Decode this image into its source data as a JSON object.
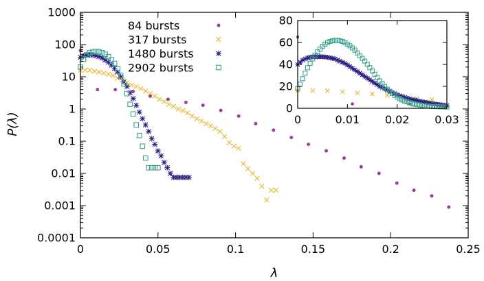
{
  "chart_data": [
    {
      "type": "scatter",
      "xlabel": "λ",
      "ylabel": "P(λ)",
      "xlim": [
        0,
        0.25
      ],
      "ylim": [
        0.0001,
        1000
      ],
      "yscale": "log",
      "grid": false,
      "legend_position": "top-center",
      "x_ticks": [
        "0",
        "0.05",
        "0.1",
        "0.15",
        "0.2",
        "0.25"
      ],
      "y_ticks": [
        "0.0001",
        "0.001",
        "0.01",
        "0.1",
        "1",
        "10",
        "100",
        "1000"
      ],
      "series": [
        {
          "name": "84  bursts",
          "color": "#9b3d96",
          "marker": "circle",
          "x": [
            0.0,
            0.011,
            0.0225,
            0.034,
            0.045,
            0.0565,
            0.068,
            0.079,
            0.0905,
            0.102,
            0.113,
            0.1245,
            0.136,
            0.147,
            0.1585,
            0.17,
            0.181,
            0.1925,
            0.204,
            0.215,
            0.2265,
            0.2375
          ],
          "y": [
            65,
            4,
            4,
            3.5,
            2.5,
            2,
            1.6,
            1.3,
            0.9,
            0.6,
            0.35,
            0.22,
            0.13,
            0.08,
            0.05,
            0.03,
            0.016,
            0.01,
            0.005,
            0.003,
            0.002,
            0.0009
          ]
        },
        {
          "name": "317  bursts",
          "color": "#e8b52b",
          "marker": "cross",
          "x": [
            0.0,
            0.003,
            0.006,
            0.009,
            0.012,
            0.015,
            0.018,
            0.021,
            0.024,
            0.027,
            0.03,
            0.033,
            0.036,
            0.039,
            0.042,
            0.045,
            0.048,
            0.051,
            0.054,
            0.057,
            0.06,
            0.063,
            0.066,
            0.069,
            0.072,
            0.075,
            0.078,
            0.081,
            0.084,
            0.087,
            0.09,
            0.093,
            0.096,
            0.099,
            0.102,
            0.105,
            0.108,
            0.111,
            0.114,
            0.117,
            0.12,
            0.123,
            0.126
          ],
          "y": [
            16,
            16,
            16,
            15,
            14,
            13,
            12,
            11,
            9,
            8,
            6.5,
            5.5,
            5,
            4.3,
            3.6,
            3,
            2.5,
            2,
            1.7,
            1.4,
            1.2,
            1,
            0.9,
            0.75,
            0.6,
            0.5,
            0.42,
            0.35,
            0.3,
            0.25,
            0.2,
            0.14,
            0.09,
            0.07,
            0.06,
            0.02,
            0.014,
            0.01,
            0.007,
            0.004,
            0.0015,
            0.003,
            0.003
          ]
        },
        {
          "name": "1480 bursts",
          "color": "#2a1e82",
          "marker": "asterisk",
          "x": [
            0.0,
            0.002,
            0.004,
            0.006,
            0.008,
            0.01,
            0.012,
            0.014,
            0.016,
            0.018,
            0.02,
            0.022,
            0.024,
            0.026,
            0.028,
            0.03,
            0.032,
            0.034,
            0.036,
            0.038,
            0.04,
            0.042,
            0.044,
            0.046,
            0.048,
            0.05,
            0.052,
            0.054,
            0.056,
            0.058,
            0.06,
            0.062,
            0.064,
            0.066,
            0.068,
            0.07
          ],
          "y": [
            40,
            44,
            47,
            48,
            47,
            45,
            42,
            38,
            33,
            28,
            23,
            18,
            14,
            10,
            7,
            5,
            3.2,
            2.1,
            1.3,
            0.8,
            0.5,
            0.32,
            0.2,
            0.12,
            0.08,
            0.05,
            0.035,
            0.022,
            0.015,
            0.01,
            0.0075,
            0.0075,
            0.0075,
            0.0075,
            0.0075,
            0.0075
          ]
        },
        {
          "name": "2902 bursts",
          "color": "#3aa38f",
          "marker": "square",
          "x": [
            0.0,
            0.002,
            0.004,
            0.006,
            0.008,
            0.01,
            0.012,
            0.014,
            0.016,
            0.018,
            0.02,
            0.022,
            0.024,
            0.026,
            0.028,
            0.03,
            0.032,
            0.034,
            0.036,
            0.038,
            0.04,
            0.042,
            0.044,
            0.046,
            0.048,
            0.05
          ],
          "y": [
            20,
            35,
            48,
            56,
            60,
            61,
            60,
            56,
            50,
            42,
            34,
            26,
            18,
            11,
            6,
            3,
            1.4,
            0.7,
            0.32,
            0.15,
            0.07,
            0.03,
            0.015,
            0.015,
            0.015,
            0.015
          ]
        }
      ]
    },
    {
      "type": "scatter",
      "xlim": [
        0,
        0.03
      ],
      "ylim": [
        0,
        80
      ],
      "yscale": "linear",
      "grid": false,
      "x_ticks": [
        "0",
        "0.01",
        "0.02",
        "0.03"
      ],
      "y_ticks": [
        "0",
        "20",
        "40",
        "60",
        "80"
      ],
      "series": [
        {
          "color": "#9b3d96",
          "marker": "circle",
          "x": [
            0.0,
            0.011,
            0.0225
          ],
          "y": [
            65,
            4,
            4
          ]
        },
        {
          "color": "#e8b52b",
          "marker": "cross",
          "x": [
            0.0,
            0.003,
            0.006,
            0.009,
            0.012,
            0.015,
            0.018,
            0.021,
            0.024,
            0.027
          ],
          "y": [
            16,
            16,
            16,
            15,
            14,
            13,
            12,
            11,
            9,
            8
          ]
        },
        {
          "color": "#2a1e82",
          "marker": "asterisk",
          "x": [
            0.0,
            0.0005,
            0.001,
            0.0015,
            0.002,
            0.0025,
            0.003,
            0.0035,
            0.004,
            0.0045,
            0.005,
            0.0055,
            0.006,
            0.0065,
            0.007,
            0.0075,
            0.008,
            0.0085,
            0.009,
            0.0095,
            0.01,
            0.0105,
            0.011,
            0.0115,
            0.012,
            0.0125,
            0.013,
            0.0135,
            0.014,
            0.0145,
            0.015,
            0.0155,
            0.016,
            0.0165,
            0.017,
            0.0175,
            0.018,
            0.0185,
            0.019,
            0.0195,
            0.02,
            0.0205,
            0.021,
            0.0215,
            0.022,
            0.0225,
            0.023,
            0.0235,
            0.024,
            0.0245,
            0.025,
            0.0255,
            0.026,
            0.0265,
            0.027,
            0.0275,
            0.028,
            0.0285,
            0.029,
            0.0295,
            0.03
          ],
          "y": [
            40,
            42,
            44,
            45,
            46,
            46.5,
            47,
            47,
            47,
            47,
            47,
            46.8,
            46.5,
            46,
            45.5,
            45,
            44,
            43,
            42,
            41,
            39.5,
            38,
            36.5,
            35,
            33.5,
            32,
            30.5,
            29,
            27.5,
            26,
            24.5,
            23,
            21.5,
            20,
            19,
            17.8,
            16.6,
            15.4,
            14.4,
            13.4,
            12.4,
            11.5,
            10.7,
            10,
            9.3,
            8.6,
            8,
            7.5,
            7,
            6.5,
            6,
            5.6,
            5.2,
            4.8,
            4.4,
            4,
            3.7,
            3.4,
            3.1,
            2.8,
            2.5
          ]
        },
        {
          "color": "#3aa38f",
          "marker": "square",
          "x": [
            0.0,
            0.0005,
            0.001,
            0.0015,
            0.002,
            0.0025,
            0.003,
            0.0035,
            0.004,
            0.0045,
            0.005,
            0.0055,
            0.006,
            0.0065,
            0.007,
            0.0075,
            0.008,
            0.0085,
            0.009,
            0.0095,
            0.01,
            0.0105,
            0.011,
            0.0115,
            0.012,
            0.0125,
            0.013,
            0.0135,
            0.014,
            0.0145,
            0.015,
            0.0155,
            0.016,
            0.0165,
            0.017,
            0.0175,
            0.018,
            0.0185,
            0.019,
            0.0195,
            0.02,
            0.0205,
            0.021,
            0.0215,
            0.022,
            0.0225,
            0.023,
            0.0235,
            0.024,
            0.0245,
            0.025,
            0.0255,
            0.026,
            0.0265,
            0.027,
            0.0275,
            0.028,
            0.0285,
            0.029,
            0.0295,
            0.03
          ],
          "y": [
            18,
            22,
            27,
            32,
            37,
            41,
            45,
            48.5,
            51.5,
            54,
            56.5,
            58.5,
            60,
            61,
            61.5,
            62,
            62,
            61.5,
            61,
            60,
            58.5,
            57,
            55,
            53,
            50.5,
            48,
            45.5,
            43,
            40,
            37,
            34,
            31,
            28,
            25,
            22.5,
            20,
            17.5,
            15.5,
            13.5,
            11.8,
            10.2,
            8.8,
            7.6,
            6.6,
            5.8,
            5,
            4.4,
            3.8,
            3.4,
            3,
            2.6,
            2.3,
            2.1,
            1.9,
            1.7,
            1.6,
            1.5,
            1.4,
            1.3,
            1.2,
            1.1
          ]
        }
      ]
    }
  ]
}
